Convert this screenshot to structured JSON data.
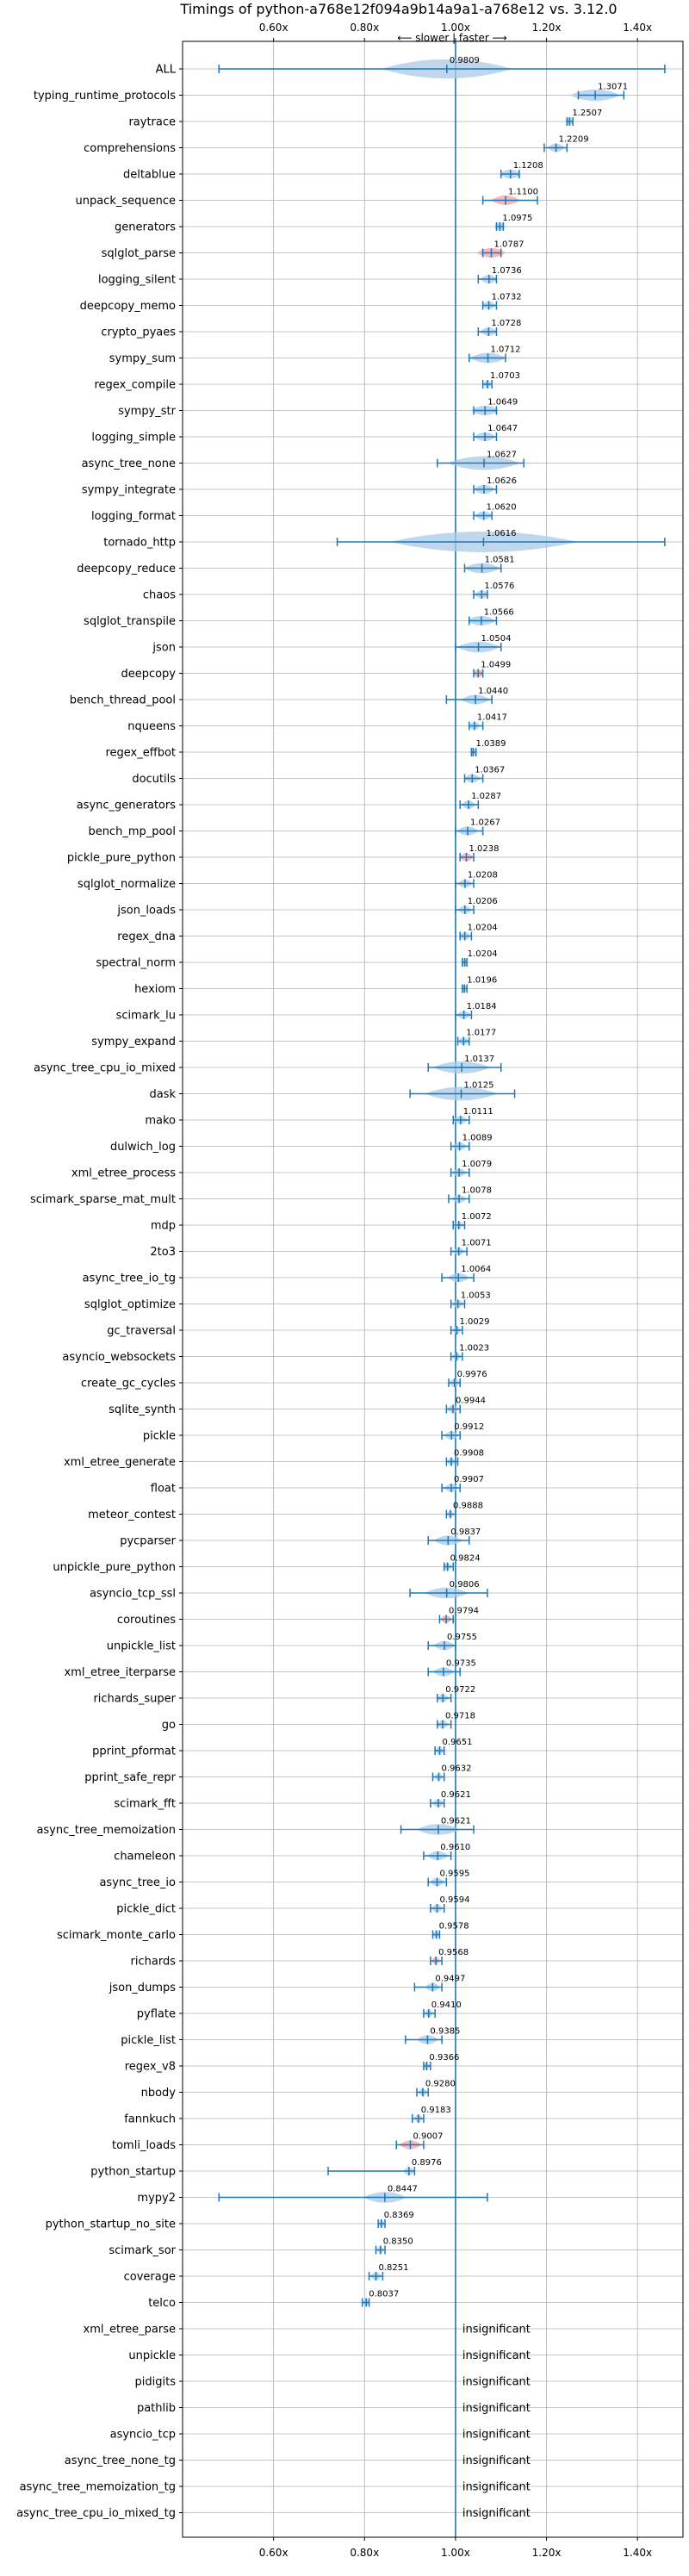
{
  "chart_data": {
    "type": "violin",
    "title": "Timings of python-a768e12f094a9b14a9a1-a768e12 vs. 3.12.0",
    "direction_label": "⟵ slower | faster ⟶",
    "xlim": [
      0.4,
      1.5
    ],
    "ticks": [
      0.6,
      0.8,
      1.0,
      1.2,
      1.4
    ],
    "tick_labels": [
      "0.60x",
      "0.80x",
      "1.00x",
      "1.20x",
      "1.40x"
    ],
    "reference_line": 1.0,
    "grid": true,
    "colors": {
      "violin": "#a9c9e6",
      "whisker": "#1f77b4",
      "reference": "#1f77b4",
      "highlight": "#f4a0a8"
    },
    "insignificant_label": "insignificant",
    "benchmarks": [
      {
        "name": "ALL",
        "value": 0.9809,
        "label": "0.9809",
        "min": 0.48,
        "max": 1.46,
        "spread": 0.09,
        "highlight": false
      },
      {
        "name": "typing_runtime_protocols",
        "value": 1.3071,
        "label": "1.3071",
        "min": 1.27,
        "max": 1.37,
        "spread": 0.035,
        "highlight": false
      },
      {
        "name": "raytrace",
        "value": 1.2507,
        "label": "1.2507",
        "min": 1.245,
        "max": 1.258,
        "spread": 0.006,
        "highlight": false
      },
      {
        "name": "comprehensions",
        "value": 1.2209,
        "label": "1.2209",
        "min": 1.195,
        "max": 1.245,
        "spread": 0.012,
        "highlight": false
      },
      {
        "name": "deltablue",
        "value": 1.1208,
        "label": "1.1208",
        "min": 1.1,
        "max": 1.14,
        "spread": 0.015,
        "highlight": false
      },
      {
        "name": "unpack_sequence",
        "value": 1.11,
        "label": "1.1100",
        "min": 1.06,
        "max": 1.18,
        "spread": 0.02,
        "highlight": true
      },
      {
        "name": "generators",
        "value": 1.0975,
        "label": "1.0975",
        "min": 1.09,
        "max": 1.105,
        "spread": 0.008,
        "highlight": false
      },
      {
        "name": "sqlglot_parse",
        "value": 1.0787,
        "label": "1.0787",
        "min": 1.06,
        "max": 1.1,
        "spread": 0.02,
        "highlight": true
      },
      {
        "name": "logging_silent",
        "value": 1.0736,
        "label": "1.0736",
        "min": 1.05,
        "max": 1.09,
        "spread": 0.012,
        "highlight": false
      },
      {
        "name": "deepcopy_memo",
        "value": 1.0732,
        "label": "1.0732",
        "min": 1.06,
        "max": 1.09,
        "spread": 0.01,
        "highlight": false
      },
      {
        "name": "crypto_pyaes",
        "value": 1.0728,
        "label": "1.0728",
        "min": 1.05,
        "max": 1.09,
        "spread": 0.012,
        "highlight": false
      },
      {
        "name": "sympy_sum",
        "value": 1.0712,
        "label": "1.0712",
        "min": 1.03,
        "max": 1.11,
        "spread": 0.025,
        "highlight": false
      },
      {
        "name": "regex_compile",
        "value": 1.0703,
        "label": "1.0703",
        "min": 1.06,
        "max": 1.08,
        "spread": 0.006,
        "highlight": false
      },
      {
        "name": "sympy_str",
        "value": 1.0649,
        "label": "1.0649",
        "min": 1.04,
        "max": 1.09,
        "spread": 0.02,
        "highlight": false
      },
      {
        "name": "logging_simple",
        "value": 1.0647,
        "label": "1.0647",
        "min": 1.04,
        "max": 1.09,
        "spread": 0.015,
        "highlight": false
      },
      {
        "name": "async_tree_none",
        "value": 1.0627,
        "label": "1.0627",
        "min": 0.96,
        "max": 1.15,
        "spread": 0.05,
        "highlight": false
      },
      {
        "name": "sympy_integrate",
        "value": 1.0626,
        "label": "1.0626",
        "min": 1.04,
        "max": 1.09,
        "spread": 0.015,
        "highlight": false
      },
      {
        "name": "logging_format",
        "value": 1.062,
        "label": "1.0620",
        "min": 1.04,
        "max": 1.08,
        "spread": 0.012,
        "highlight": false
      },
      {
        "name": "tornado_http",
        "value": 1.0616,
        "label": "1.0616",
        "min": 0.74,
        "max": 1.46,
        "spread": 0.13,
        "highlight": false
      },
      {
        "name": "deepcopy_reduce",
        "value": 1.0581,
        "label": "1.0581",
        "min": 1.02,
        "max": 1.1,
        "spread": 0.025,
        "highlight": false
      },
      {
        "name": "chaos",
        "value": 1.0576,
        "label": "1.0576",
        "min": 1.04,
        "max": 1.07,
        "spread": 0.01,
        "highlight": false
      },
      {
        "name": "sqlglot_transpile",
        "value": 1.0566,
        "label": "1.0566",
        "min": 1.03,
        "max": 1.09,
        "spread": 0.02,
        "highlight": false
      },
      {
        "name": "json",
        "value": 1.0504,
        "label": "1.0504",
        "min": 1.0,
        "max": 1.1,
        "spread": 0.03,
        "highlight": false
      },
      {
        "name": "deepcopy",
        "value": 1.0499,
        "label": "1.0499",
        "min": 1.04,
        "max": 1.06,
        "spread": 0.008,
        "highlight": true
      },
      {
        "name": "bench_thread_pool",
        "value": 1.044,
        "label": "1.0440",
        "min": 0.98,
        "max": 1.08,
        "spread": 0.02,
        "highlight": false
      },
      {
        "name": "nqueens",
        "value": 1.0417,
        "label": "1.0417",
        "min": 1.03,
        "max": 1.06,
        "spread": 0.008,
        "highlight": false
      },
      {
        "name": "regex_effbot",
        "value": 1.0389,
        "label": "1.0389",
        "min": 1.035,
        "max": 1.045,
        "spread": 0.004,
        "highlight": false
      },
      {
        "name": "docutils",
        "value": 1.0367,
        "label": "1.0367",
        "min": 1.02,
        "max": 1.06,
        "spread": 0.012,
        "highlight": false
      },
      {
        "name": "async_generators",
        "value": 1.0287,
        "label": "1.0287",
        "min": 1.01,
        "max": 1.05,
        "spread": 0.01,
        "highlight": false
      },
      {
        "name": "bench_mp_pool",
        "value": 1.0267,
        "label": "1.0267",
        "min": 1.0,
        "max": 1.06,
        "spread": 0.015,
        "highlight": false
      },
      {
        "name": "pickle_pure_python",
        "value": 1.0238,
        "label": "1.0238",
        "min": 1.01,
        "max": 1.04,
        "spread": 0.01,
        "highlight": true
      },
      {
        "name": "sqlglot_normalize",
        "value": 1.0208,
        "label": "1.0208",
        "min": 1.0,
        "max": 1.04,
        "spread": 0.01,
        "highlight": false
      },
      {
        "name": "json_loads",
        "value": 1.0206,
        "label": "1.0206",
        "min": 1.0,
        "max": 1.04,
        "spread": 0.01,
        "highlight": false
      },
      {
        "name": "regex_dna",
        "value": 1.0204,
        "label": "1.0204",
        "min": 1.01,
        "max": 1.035,
        "spread": 0.008,
        "highlight": false
      },
      {
        "name": "spectral_norm",
        "value": 1.0204,
        "label": "1.0204",
        "min": 1.015,
        "max": 1.025,
        "spread": 0.004,
        "highlight": false
      },
      {
        "name": "hexiom",
        "value": 1.0196,
        "label": "1.0196",
        "min": 1.015,
        "max": 1.025,
        "spread": 0.004,
        "highlight": false
      },
      {
        "name": "scimark_lu",
        "value": 1.0184,
        "label": "1.0184",
        "min": 1.0,
        "max": 1.035,
        "spread": 0.01,
        "highlight": false
      },
      {
        "name": "sympy_expand",
        "value": 1.0177,
        "label": "1.0177",
        "min": 1.005,
        "max": 1.03,
        "spread": 0.008,
        "highlight": false
      },
      {
        "name": "async_tree_cpu_io_mixed",
        "value": 1.0137,
        "label": "1.0137",
        "min": 0.94,
        "max": 1.1,
        "spread": 0.04,
        "highlight": false
      },
      {
        "name": "dask",
        "value": 1.0125,
        "label": "1.0125",
        "min": 0.9,
        "max": 1.13,
        "spread": 0.05,
        "highlight": false
      },
      {
        "name": "mako",
        "value": 1.0111,
        "label": "1.0111",
        "min": 0.995,
        "max": 1.03,
        "spread": 0.01,
        "highlight": false
      },
      {
        "name": "dulwich_log",
        "value": 1.0089,
        "label": "1.0089",
        "min": 0.99,
        "max": 1.03,
        "spread": 0.01,
        "highlight": false
      },
      {
        "name": "xml_etree_process",
        "value": 1.0079,
        "label": "1.0079",
        "min": 0.99,
        "max": 1.03,
        "spread": 0.01,
        "highlight": false
      },
      {
        "name": "scimark_sparse_mat_mult",
        "value": 1.0078,
        "label": "1.0078",
        "min": 0.985,
        "max": 1.03,
        "spread": 0.01,
        "highlight": false
      },
      {
        "name": "mdp",
        "value": 1.0072,
        "label": "1.0072",
        "min": 0.995,
        "max": 1.02,
        "spread": 0.006,
        "highlight": false
      },
      {
        "name": "2to3",
        "value": 1.0071,
        "label": "1.0071",
        "min": 0.99,
        "max": 1.025,
        "spread": 0.008,
        "highlight": false
      },
      {
        "name": "async_tree_io_tg",
        "value": 1.0064,
        "label": "1.0064",
        "min": 0.97,
        "max": 1.04,
        "spread": 0.015,
        "highlight": false
      },
      {
        "name": "sqlglot_optimize",
        "value": 1.0053,
        "label": "1.0053",
        "min": 0.99,
        "max": 1.02,
        "spread": 0.008,
        "highlight": false
      },
      {
        "name": "gc_traversal",
        "value": 1.0029,
        "label": "1.0029",
        "min": 0.99,
        "max": 1.015,
        "spread": 0.006,
        "highlight": false
      },
      {
        "name": "asyncio_websockets",
        "value": 1.0023,
        "label": "1.0023",
        "min": 0.99,
        "max": 1.015,
        "spread": 0.006,
        "highlight": false
      },
      {
        "name": "create_gc_cycles",
        "value": 0.9976,
        "label": "0.9976",
        "min": 0.985,
        "max": 1.01,
        "spread": 0.008,
        "highlight": false
      },
      {
        "name": "sqlite_synth",
        "value": 0.9944,
        "label": "0.9944",
        "min": 0.98,
        "max": 1.01,
        "spread": 0.008,
        "highlight": false
      },
      {
        "name": "pickle",
        "value": 0.9912,
        "label": "0.9912",
        "min": 0.97,
        "max": 1.01,
        "spread": 0.01,
        "highlight": false
      },
      {
        "name": "xml_etree_generate",
        "value": 0.9908,
        "label": "0.9908",
        "min": 0.98,
        "max": 1.005,
        "spread": 0.006,
        "highlight": false
      },
      {
        "name": "float",
        "value": 0.9907,
        "label": "0.9907",
        "min": 0.97,
        "max": 1.01,
        "spread": 0.01,
        "highlight": false
      },
      {
        "name": "meteor_contest",
        "value": 0.9888,
        "label": "0.9888",
        "min": 0.98,
        "max": 1.0,
        "spread": 0.005,
        "highlight": false
      },
      {
        "name": "pycparser",
        "value": 0.9837,
        "label": "0.9837",
        "min": 0.94,
        "max": 1.03,
        "spread": 0.02,
        "highlight": false
      },
      {
        "name": "unpickle_pure_python",
        "value": 0.9824,
        "label": "0.9824",
        "min": 0.975,
        "max": 0.995,
        "spread": 0.006,
        "highlight": false
      },
      {
        "name": "asyncio_tcp_ssl",
        "value": 0.9806,
        "label": "0.9806",
        "min": 0.9,
        "max": 1.07,
        "spread": 0.03,
        "highlight": false
      },
      {
        "name": "coroutines",
        "value": 0.9794,
        "label": "0.9794",
        "min": 0.965,
        "max": 0.995,
        "spread": 0.008,
        "highlight": true
      },
      {
        "name": "unpickle_list",
        "value": 0.9755,
        "label": "0.9755",
        "min": 0.94,
        "max": 1.0,
        "spread": 0.015,
        "highlight": false
      },
      {
        "name": "xml_etree_iterparse",
        "value": 0.9735,
        "label": "0.9735",
        "min": 0.94,
        "max": 1.01,
        "spread": 0.015,
        "highlight": false
      },
      {
        "name": "richards_super",
        "value": 0.9722,
        "label": "0.9722",
        "min": 0.96,
        "max": 0.99,
        "spread": 0.008,
        "highlight": false
      },
      {
        "name": "go",
        "value": 0.9718,
        "label": "0.9718",
        "min": 0.96,
        "max": 0.99,
        "spread": 0.008,
        "highlight": false
      },
      {
        "name": "pprint_pformat",
        "value": 0.9651,
        "label": "0.9651",
        "min": 0.955,
        "max": 0.975,
        "spread": 0.006,
        "highlight": false
      },
      {
        "name": "pprint_safe_repr",
        "value": 0.9632,
        "label": "0.9632",
        "min": 0.95,
        "max": 0.975,
        "spread": 0.006,
        "highlight": false
      },
      {
        "name": "scimark_fft",
        "value": 0.9621,
        "label": "0.9621",
        "min": 0.945,
        "max": 0.975,
        "spread": 0.008,
        "highlight": false
      },
      {
        "name": "async_tree_memoization",
        "value": 0.9621,
        "label": "0.9621",
        "min": 0.88,
        "max": 1.04,
        "spread": 0.03,
        "highlight": false
      },
      {
        "name": "chameleon",
        "value": 0.961,
        "label": "0.9610",
        "min": 0.93,
        "max": 0.99,
        "spread": 0.015,
        "highlight": false
      },
      {
        "name": "async_tree_io",
        "value": 0.9595,
        "label": "0.9595",
        "min": 0.94,
        "max": 0.98,
        "spread": 0.01,
        "highlight": false
      },
      {
        "name": "pickle_dict",
        "value": 0.9594,
        "label": "0.9594",
        "min": 0.945,
        "max": 0.975,
        "spread": 0.008,
        "highlight": false
      },
      {
        "name": "scimark_monte_carlo",
        "value": 0.9578,
        "label": "0.9578",
        "min": 0.95,
        "max": 0.965,
        "spread": 0.004,
        "highlight": false
      },
      {
        "name": "richards",
        "value": 0.9568,
        "label": "0.9568",
        "min": 0.945,
        "max": 0.97,
        "spread": 0.006,
        "highlight": true
      },
      {
        "name": "json_dumps",
        "value": 0.9497,
        "label": "0.9497",
        "min": 0.91,
        "max": 0.97,
        "spread": 0.01,
        "highlight": false
      },
      {
        "name": "pyflate",
        "value": 0.941,
        "label": "0.9410",
        "min": 0.93,
        "max": 0.955,
        "spread": 0.006,
        "highlight": false
      },
      {
        "name": "pickle_list",
        "value": 0.9385,
        "label": "0.9385",
        "min": 0.89,
        "max": 0.97,
        "spread": 0.015,
        "highlight": false
      },
      {
        "name": "regex_v8",
        "value": 0.9366,
        "label": "0.9366",
        "min": 0.93,
        "max": 0.945,
        "spread": 0.004,
        "highlight": false
      },
      {
        "name": "nbody",
        "value": 0.928,
        "label": "0.9280",
        "min": 0.915,
        "max": 0.94,
        "spread": 0.006,
        "highlight": false
      },
      {
        "name": "fannkuch",
        "value": 0.9183,
        "label": "0.9183",
        "min": 0.905,
        "max": 0.93,
        "spread": 0.006,
        "highlight": false
      },
      {
        "name": "tomli_loads",
        "value": 0.9007,
        "label": "0.9007",
        "min": 0.87,
        "max": 0.93,
        "spread": 0.015,
        "highlight": true
      },
      {
        "name": "python_startup",
        "value": 0.8976,
        "label": "0.8976",
        "min": 0.72,
        "max": 0.91,
        "spread": 0.008,
        "highlight": false
      },
      {
        "name": "mypy2",
        "value": 0.8447,
        "label": "0.8447",
        "min": 0.48,
        "max": 1.07,
        "spread": 0.03,
        "highlight": false
      },
      {
        "name": "python_startup_no_site",
        "value": 0.8369,
        "label": "0.8369",
        "min": 0.83,
        "max": 0.845,
        "spread": 0.004,
        "highlight": false
      },
      {
        "name": "scimark_sor",
        "value": 0.835,
        "label": "0.8350",
        "min": 0.825,
        "max": 0.845,
        "spread": 0.004,
        "highlight": false
      },
      {
        "name": "coverage",
        "value": 0.8251,
        "label": "0.8251",
        "min": 0.81,
        "max": 0.84,
        "spread": 0.008,
        "highlight": false
      },
      {
        "name": "telco",
        "value": 0.8037,
        "label": "0.8037",
        "min": 0.795,
        "max": 0.81,
        "spread": 0.004,
        "highlight": false
      },
      {
        "name": "xml_etree_parse",
        "insignificant": true
      },
      {
        "name": "unpickle",
        "insignificant": true
      },
      {
        "name": "pidigits",
        "insignificant": true
      },
      {
        "name": "pathlib",
        "insignificant": true
      },
      {
        "name": "asyncio_tcp",
        "insignificant": true
      },
      {
        "name": "async_tree_none_tg",
        "insignificant": true
      },
      {
        "name": "async_tree_memoization_tg",
        "insignificant": true
      },
      {
        "name": "async_tree_cpu_io_mixed_tg",
        "insignificant": true
      }
    ]
  }
}
